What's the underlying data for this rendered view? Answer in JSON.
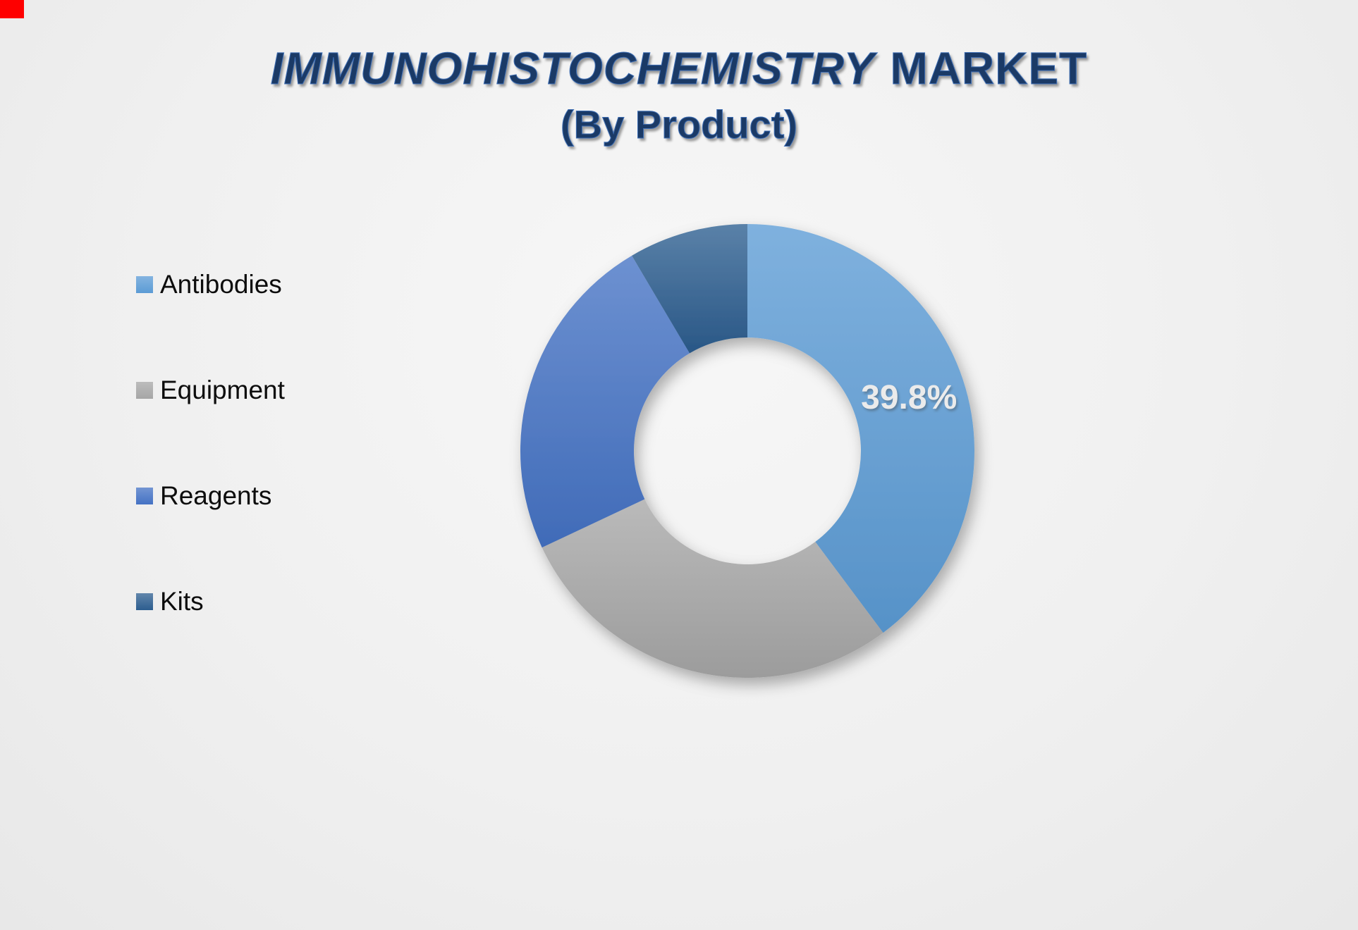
{
  "page": {
    "corner_marker_color": "#fe0000"
  },
  "title": {
    "part1": "IMMUNOHISTOCHEMISTRY",
    "part2": "MARKET",
    "subtitle": "(By Product)",
    "color": "#1b3a66"
  },
  "chart_data": {
    "type": "pie",
    "subtype": "donut",
    "title": "IMMUNOHISTOCHEMISTRY MARKET (By Product)",
    "categories": [
      "Antibodies",
      "Equipment",
      "Reagents",
      "Kits"
    ],
    "values": [
      39.8,
      28.2,
      23.5,
      8.5
    ],
    "value_labels": [
      "39.8%",
      "",
      "",
      ""
    ],
    "colors": [
      "#5b9bd5",
      "#a6a6a6",
      "#4472c4",
      "#2c5d8f"
    ],
    "start_angle_deg": 0,
    "direction": "clockwise",
    "donut_hole_ratio": 0.5,
    "legend_position": "left"
  }
}
